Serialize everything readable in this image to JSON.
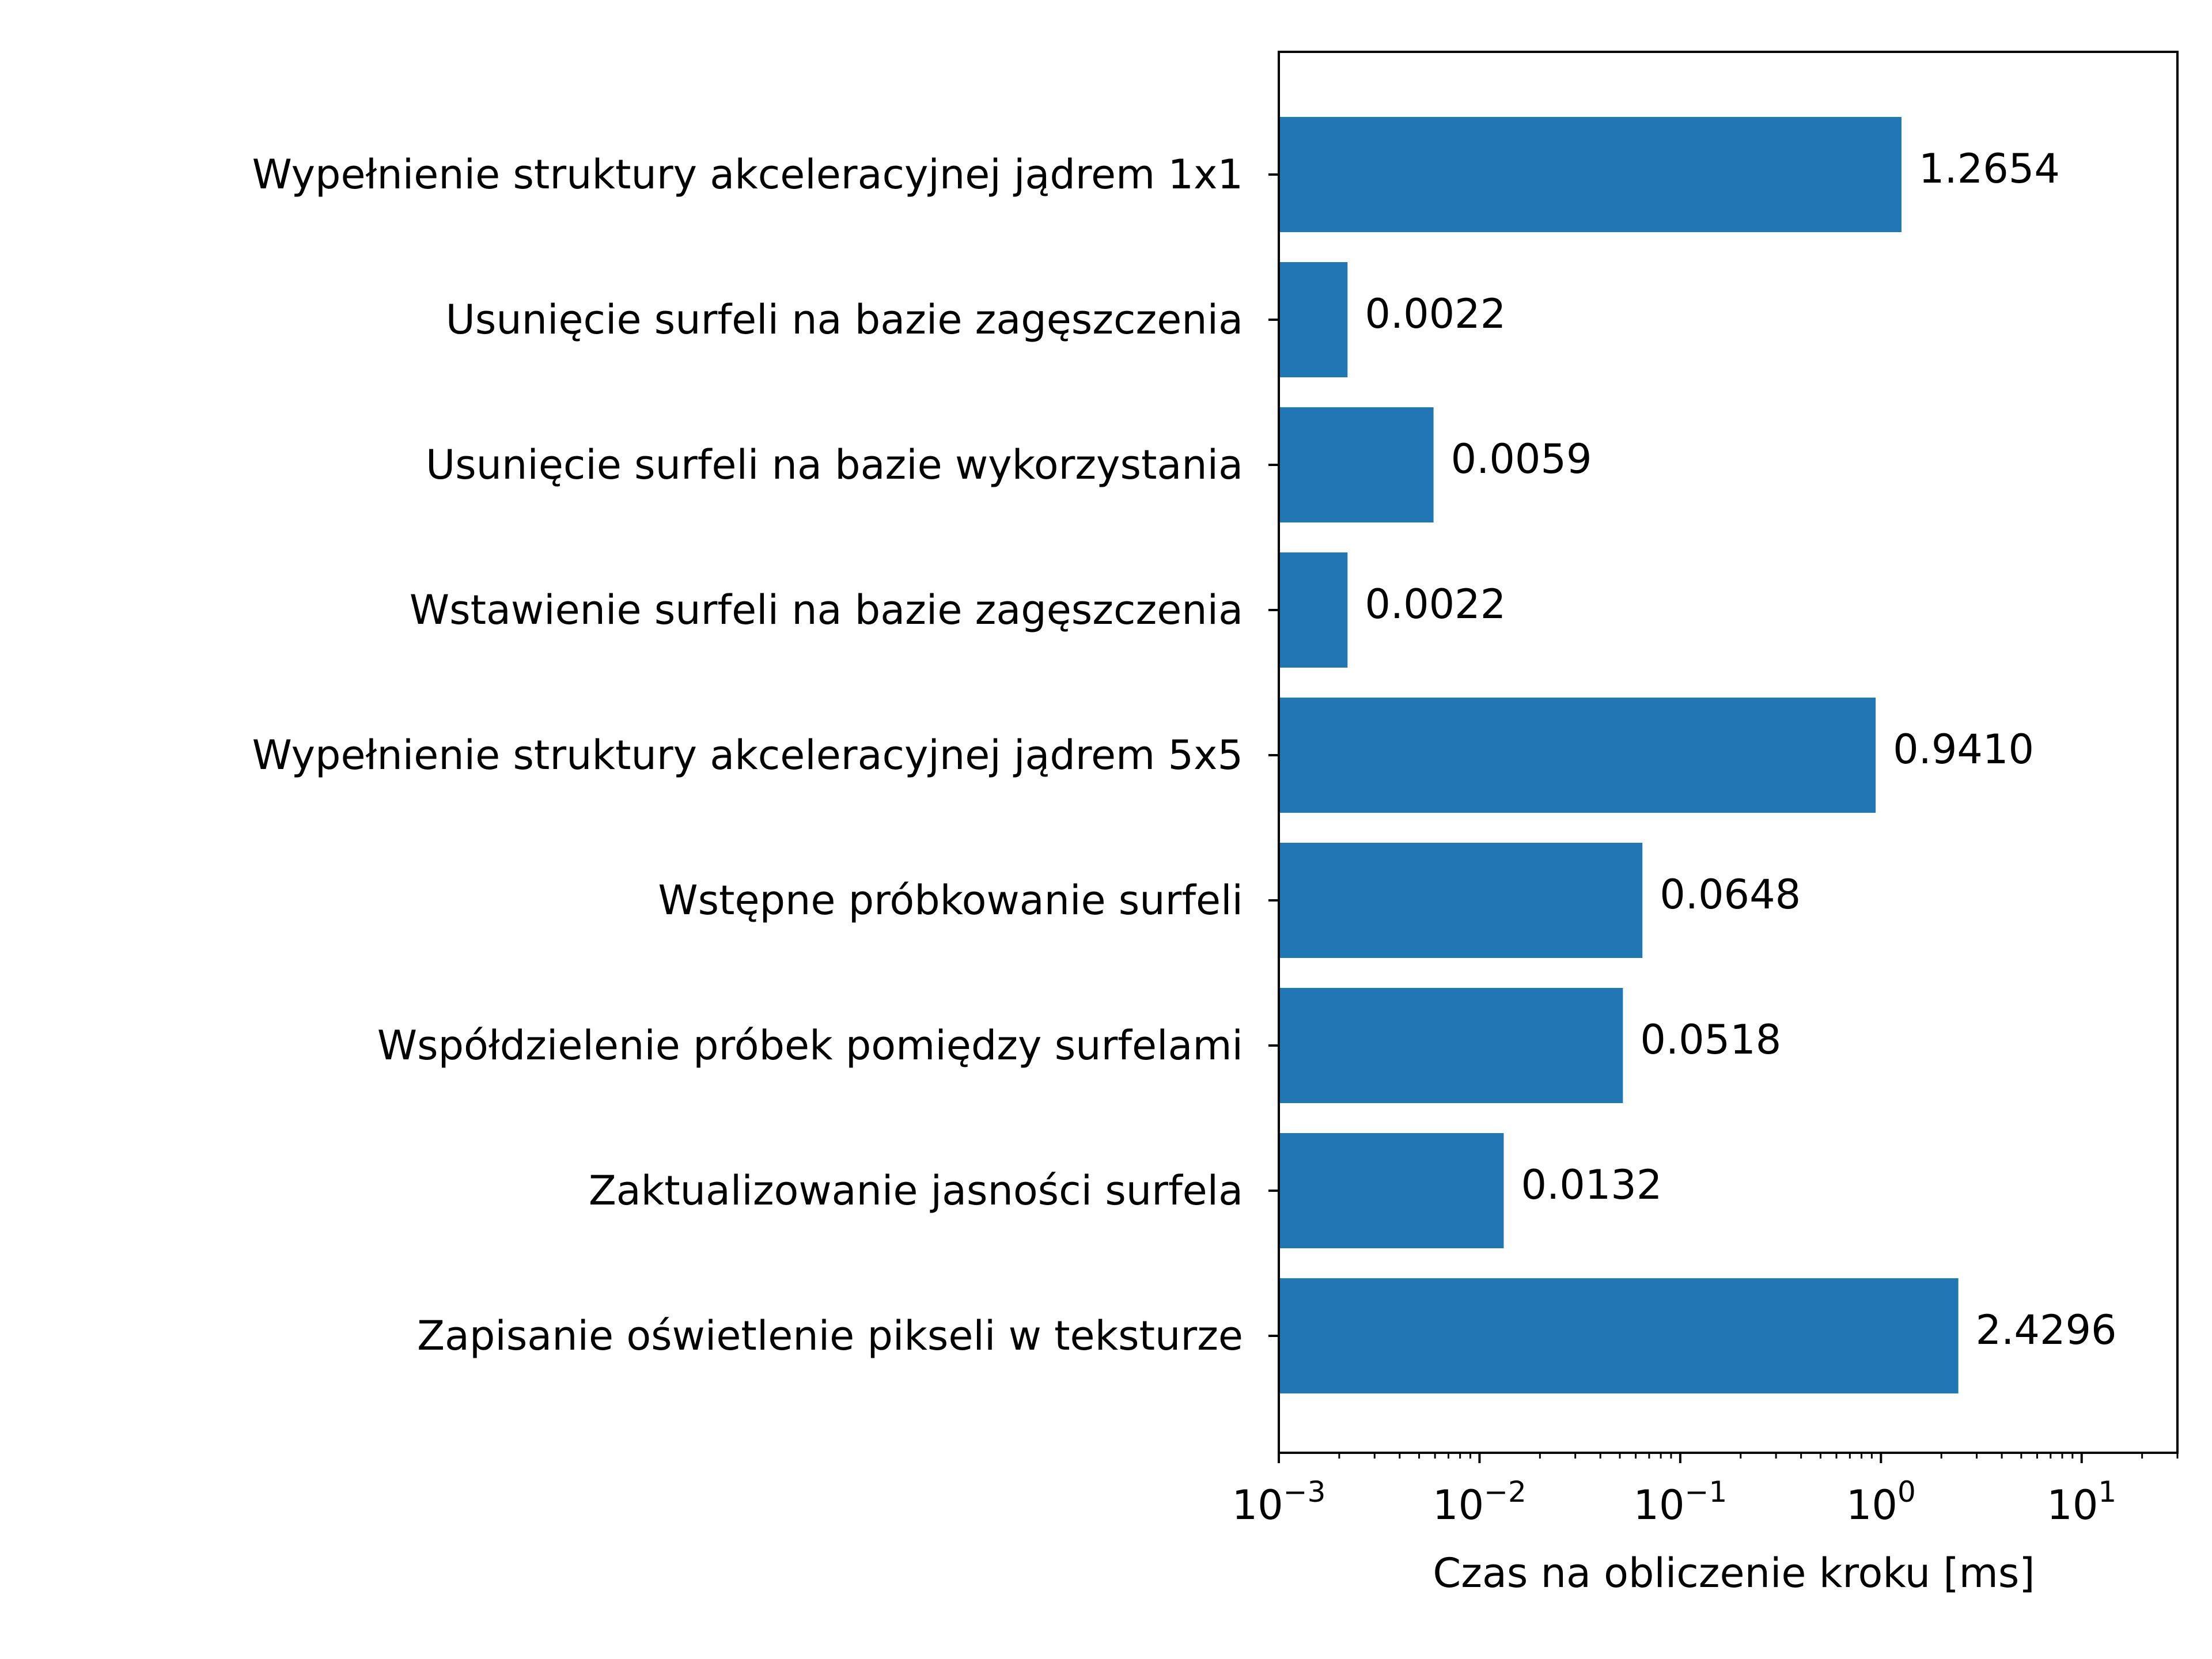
{
  "chart_data": {
    "type": "bar",
    "orientation": "horizontal",
    "title": "",
    "xlabel": "Czas na obliczenie kroku [ms]",
    "ylabel": "",
    "x_scale": "log",
    "xlim": [
      0.001,
      30
    ],
    "x_ticks": [
      {
        "base": "10",
        "exp": "−3"
      },
      {
        "base": "10",
        "exp": "−2"
      },
      {
        "base": "10",
        "exp": "−1"
      },
      {
        "base": "10",
        "exp": "0"
      },
      {
        "base": "10",
        "exp": "1"
      }
    ],
    "grid": false,
    "legend": "none",
    "bar_color": "#2077b4",
    "categories": [
      "Wypełnienie struktury akceleracyjnej jądrem 1x1",
      "Usunięcie surfeli na bazie zagęszczenia",
      "Usunięcie surfeli na bazie wykorzystania",
      "Wstawienie surfeli na bazie zagęszczenia",
      "Wypełnienie struktury akceleracyjnej jądrem 5x5",
      "Wstępne próbkowanie surfeli",
      "Współdzielenie próbek pomiędzy surfelami",
      "Zaktualizowanie jasności surfela",
      "Zapisanie oświetlenie pikseli w teksturze"
    ],
    "values": [
      1.2654,
      0.0022,
      0.0059,
      0.0022,
      0.941,
      0.0648,
      0.0518,
      0.0132,
      2.4296
    ],
    "value_labels": [
      "1.2654",
      "0.0022",
      "0.0059",
      "0.0022",
      "0.9410",
      "0.0648",
      "0.0518",
      "0.0132",
      "2.4296"
    ]
  }
}
